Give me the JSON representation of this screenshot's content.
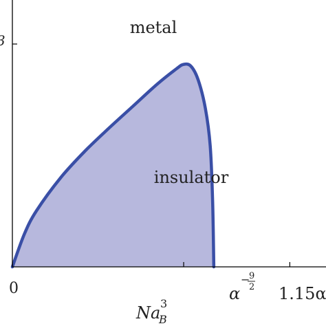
{
  "chart_data": {
    "type": "area",
    "x_tick_labels": [
      {
        "x": 0,
        "label": "0"
      },
      {
        "x": 0.71,
        "label": "α^{-9/2}"
      },
      {
        "x": 1.15,
        "label": "1.15α"
      }
    ],
    "y_tick_label_partial": "3",
    "xlabel": "Na_B^3",
    "region_labels": [
      "metal",
      "insulator"
    ],
    "xlim": [
      0,
      1.3
    ],
    "ylim": [
      0,
      1
    ],
    "series": [
      {
        "fill_color": "#b7b8dd",
        "line_color": "#3a4fa6",
        "x": [
          0,
          0.05,
          0.1,
          0.2,
          0.3,
          0.4,
          0.5,
          0.6,
          0.68,
          0.71,
          0.74,
          0.77,
          0.8,
          0.82,
          0.83,
          0.835
        ],
        "y": [
          0,
          0.15,
          0.255,
          0.405,
          0.525,
          0.63,
          0.73,
          0.83,
          0.9,
          0.92,
          0.912,
          0.85,
          0.72,
          0.55,
          0.3,
          0
        ]
      }
    ]
  }
}
